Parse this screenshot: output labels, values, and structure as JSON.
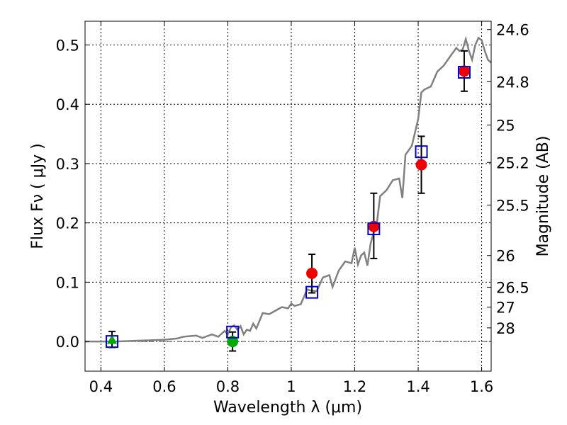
{
  "chart_data": {
    "type": "scatter",
    "xlabel": "Wavelength  λ (μm)",
    "ylabel": "Flux  Fν ( μJy )",
    "y2label": "Magnitude (AB)",
    "xlim": [
      0.35,
      1.63
    ],
    "ylim": [
      -0.05,
      0.54
    ],
    "xticks": [
      0.4,
      0.6,
      0.8,
      1.0,
      1.2,
      1.4,
      1.6
    ],
    "xticklabels": [
      "0.4",
      "0.6",
      "0.8",
      "1",
      "1.2",
      "1.4",
      "1.6"
    ],
    "yticks": [
      0.0,
      0.1,
      0.2,
      0.3,
      0.4,
      0.5
    ],
    "yticklabels": [
      "0.0",
      "0.1",
      "0.2",
      "0.3",
      "0.4",
      "0.5"
    ],
    "y2ticklabels": [
      "24.6",
      "24.8",
      "25",
      "25.2",
      "25.5",
      "26",
      "26.5",
      "27",
      "28"
    ],
    "y2tickflux": [
      0.526,
      0.438,
      0.365,
      0.302,
      0.23,
      0.145,
      0.0916,
      0.058,
      0.023
    ],
    "grid": true,
    "colors": {
      "model": "#808080",
      "red_points": "#ee0000",
      "green_points": "#00aa00",
      "squares": "#0000cc",
      "errorbars": "#000000",
      "zero_line": "#555555"
    },
    "model_spectrum": {
      "x": [
        0.35,
        0.4,
        0.45,
        0.5,
        0.55,
        0.6,
        0.64,
        0.66,
        0.7,
        0.72,
        0.75,
        0.77,
        0.79,
        0.8,
        0.81,
        0.82,
        0.83,
        0.84,
        0.85,
        0.86,
        0.87,
        0.88,
        0.89,
        0.9,
        0.91,
        0.93,
        0.95,
        0.97,
        0.99,
        1.0,
        1.01,
        1.03,
        1.05,
        1.06,
        1.08,
        1.1,
        1.12,
        1.13,
        1.15,
        1.17,
        1.19,
        1.2,
        1.21,
        1.22,
        1.23,
        1.24,
        1.25,
        1.26,
        1.27,
        1.28,
        1.3,
        1.32,
        1.34,
        1.35,
        1.36,
        1.38,
        1.4,
        1.41,
        1.42,
        1.44,
        1.46,
        1.48,
        1.5,
        1.52,
        1.53,
        1.54,
        1.55,
        1.56,
        1.57,
        1.58,
        1.59,
        1.6,
        1.61,
        1.62,
        1.63
      ],
      "y": [
        0.0,
        0.0,
        0.0,
        0.001,
        0.002,
        0.003,
        0.005,
        0.008,
        0.01,
        0.006,
        0.012,
        0.008,
        0.018,
        0.012,
        0.024,
        0.027,
        0.02,
        0.026,
        0.012,
        0.02,
        0.018,
        0.03,
        0.022,
        0.035,
        0.048,
        0.046,
        0.052,
        0.058,
        0.056,
        0.064,
        0.06,
        0.063,
        0.088,
        0.086,
        0.085,
        0.108,
        0.112,
        0.092,
        0.12,
        0.135,
        0.132,
        0.158,
        0.13,
        0.145,
        0.15,
        0.128,
        0.165,
        0.185,
        0.2,
        0.245,
        0.255,
        0.272,
        0.275,
        0.242,
        0.315,
        0.33,
        0.375,
        0.42,
        0.425,
        0.43,
        0.455,
        0.465,
        0.48,
        0.495,
        0.49,
        0.492,
        0.51,
        0.49,
        0.475,
        0.5,
        0.512,
        0.508,
        0.49,
        0.475,
        0.47
      ]
    },
    "series": [
      {
        "marker": "circle",
        "color": "#ee0000",
        "points": [
          {
            "x": 1.065,
            "y": 0.115
          },
          {
            "x": 1.26,
            "y": 0.194
          },
          {
            "x": 1.41,
            "y": 0.298
          },
          {
            "x": 1.545,
            "y": 0.456
          }
        ]
      },
      {
        "marker": "circle",
        "color": "#00aa00",
        "points": [
          {
            "x": 0.815,
            "y": 0.0
          }
        ]
      },
      {
        "marker": "triangle",
        "color": "#00aa00",
        "points": [
          {
            "x": 0.435,
            "y": 0.002
          }
        ]
      },
      {
        "marker": "square",
        "color": "#0000cc",
        "points": [
          {
            "x": 0.435,
            "y": 0.0
          },
          {
            "x": 0.815,
            "y": 0.016
          },
          {
            "x": 1.065,
            "y": 0.083
          },
          {
            "x": 1.26,
            "y": 0.19
          },
          {
            "x": 1.41,
            "y": 0.32
          },
          {
            "x": 1.545,
            "y": 0.454
          }
        ]
      }
    ],
    "errorbars": [
      {
        "x": 0.435,
        "low": -0.01,
        "high": 0.017
      },
      {
        "x": 0.815,
        "low": -0.016,
        "high": 0.016
      },
      {
        "x": 1.065,
        "low": 0.082,
        "high": 0.147
      },
      {
        "x": 1.26,
        "low": 0.14,
        "high": 0.25
      },
      {
        "x": 1.41,
        "low": 0.25,
        "high": 0.346
      },
      {
        "x": 1.545,
        "low": 0.422,
        "high": 0.49
      }
    ]
  }
}
